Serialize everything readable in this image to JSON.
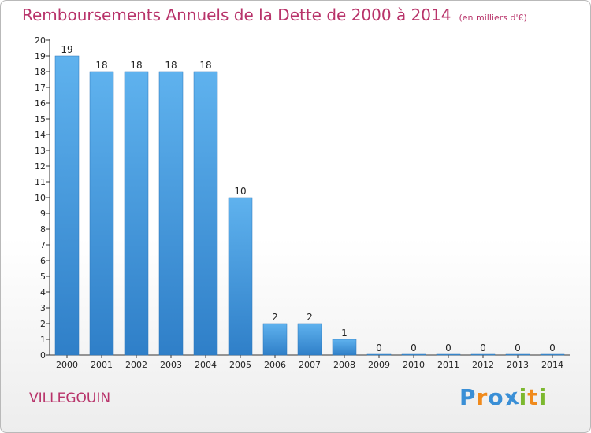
{
  "chart_data": {
    "type": "bar",
    "title": "Remboursements Annuels de la Dette de 2000 à 2014",
    "unit_note": "(en milliers d'€)",
    "categories": [
      "2000",
      "2001",
      "2002",
      "2003",
      "2004",
      "2005",
      "2006",
      "2007",
      "2008",
      "2009",
      "2010",
      "2011",
      "2012",
      "2013",
      "2014"
    ],
    "values": [
      19,
      18,
      18,
      18,
      18,
      10,
      2,
      2,
      1,
      0,
      0,
      0,
      0,
      0,
      0
    ],
    "ylim": [
      0,
      20
    ],
    "yticks": [
      0,
      1,
      2,
      3,
      4,
      5,
      6,
      7,
      8,
      9,
      10,
      11,
      12,
      13,
      14,
      15,
      16,
      17,
      18,
      19,
      20
    ],
    "grid": false,
    "bar_color": "#4a9ee2"
  },
  "commune": "VILLEGOUIN",
  "logo": {
    "letters": [
      "P",
      "r",
      "o",
      "x",
      "i",
      "t",
      "i"
    ],
    "colors": [
      "#3a8fd6",
      "#f08a1c",
      "#3a8fd6",
      "#3a8fd6",
      "#7cb82f",
      "#f08a1c",
      "#7cb82f"
    ]
  },
  "colors": {
    "title": "#b8336a"
  }
}
